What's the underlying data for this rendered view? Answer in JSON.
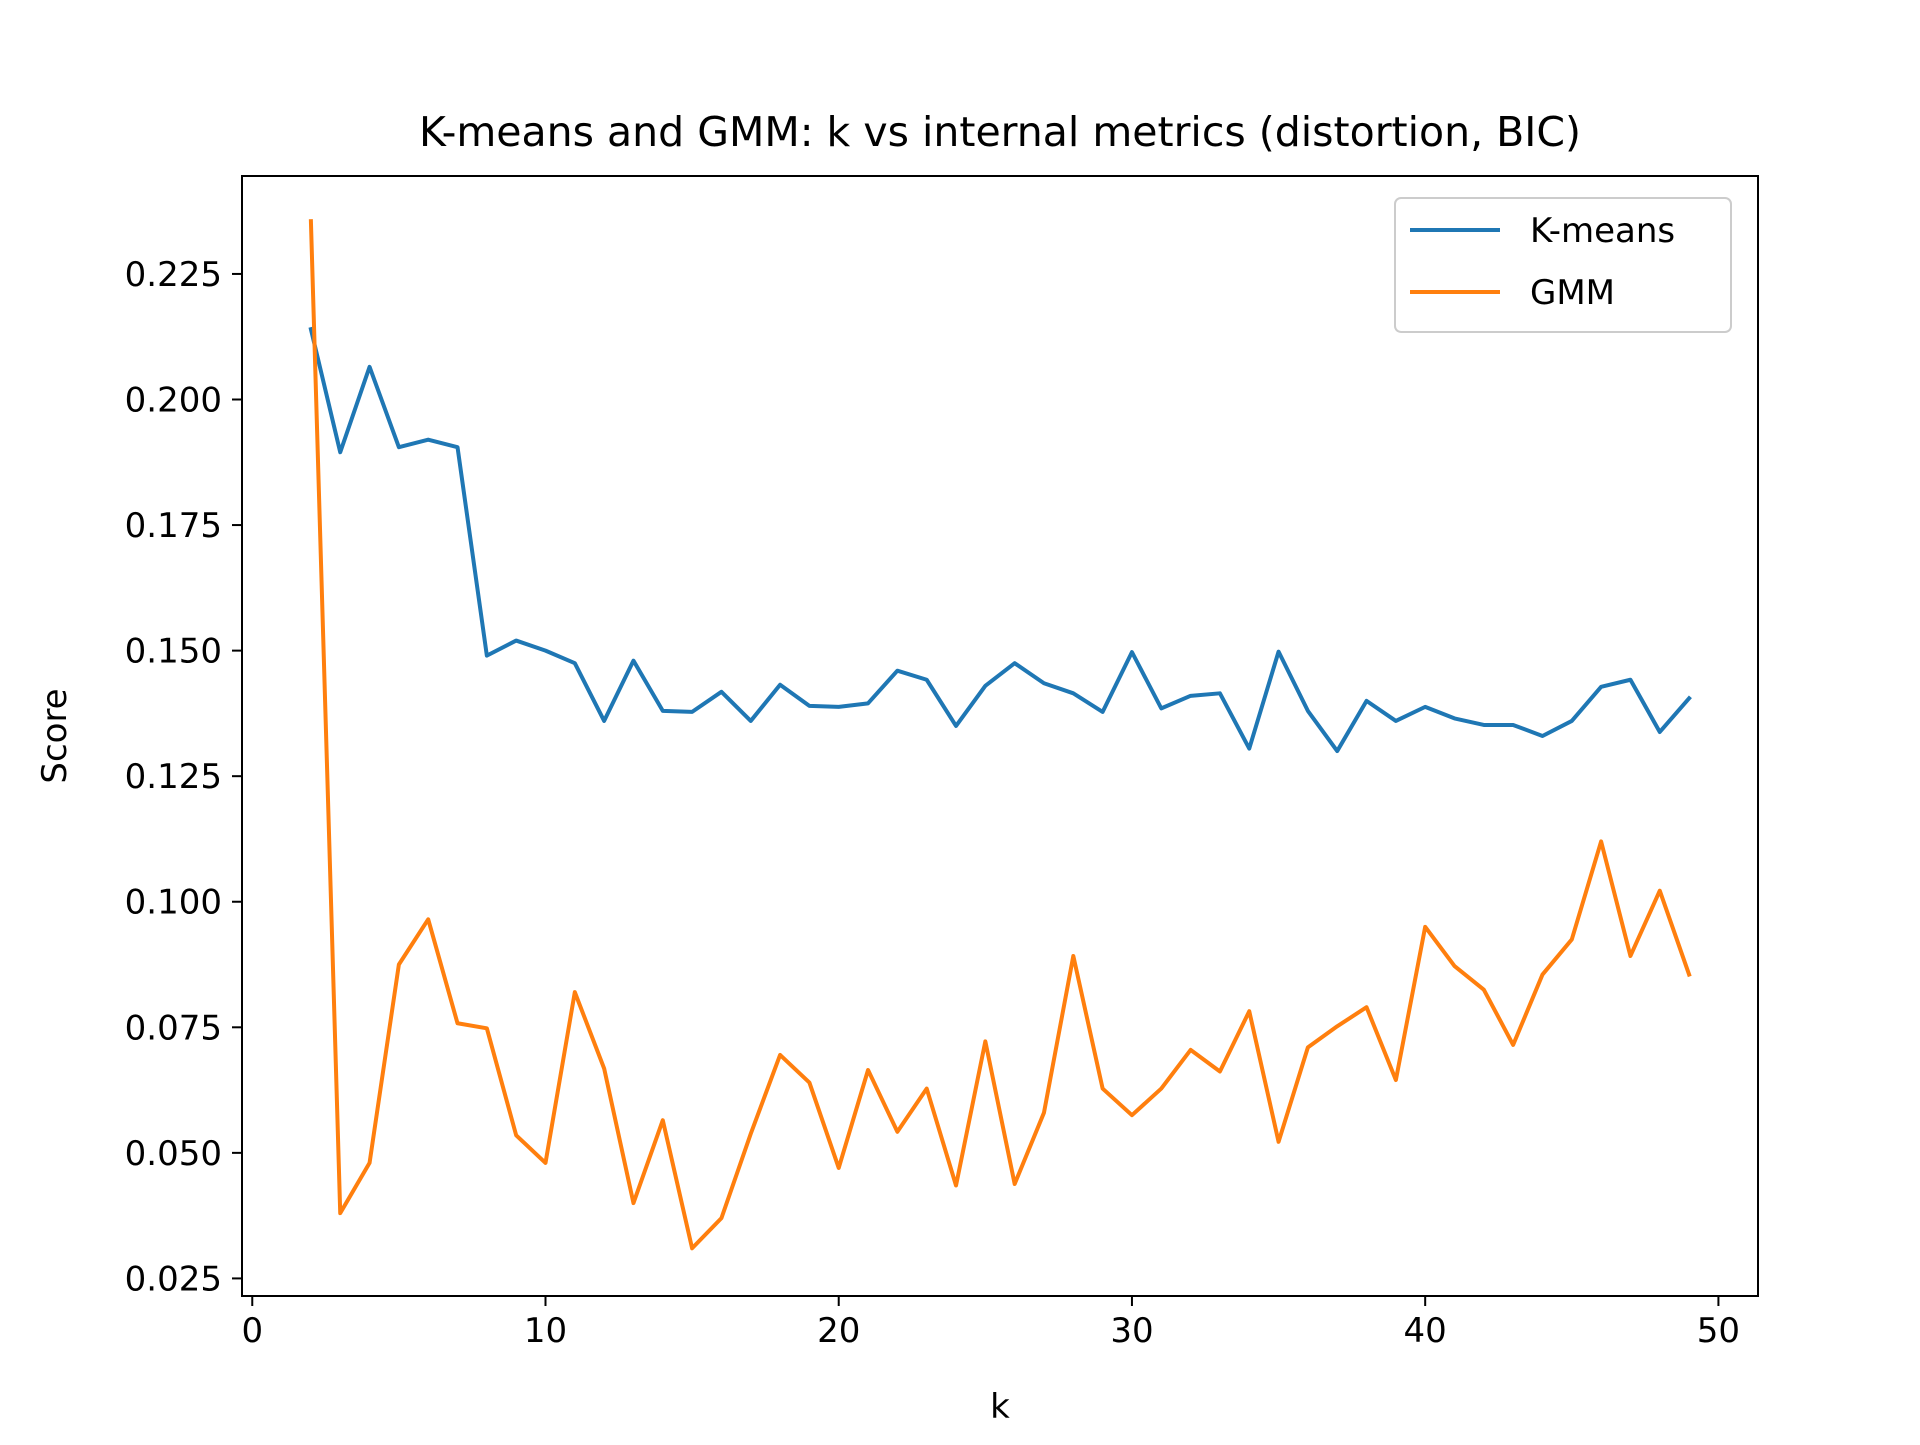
{
  "chart_data": {
    "type": "line",
    "title": "K-means and GMM: k vs internal metrics (distortion, BIC)",
    "xlabel": "k",
    "ylabel": "Score",
    "xlim": [
      -0.35,
      51.35
    ],
    "ylim": [
      0.0215,
      0.2445
    ],
    "xticks": [
      0,
      10,
      20,
      30,
      40,
      50
    ],
    "yticks": [
      0.025,
      0.05,
      0.075,
      0.1,
      0.125,
      0.15,
      0.175,
      0.2,
      0.225
    ],
    "xtick_labels": [
      "0",
      "10",
      "20",
      "30",
      "40",
      "50"
    ],
    "ytick_labels": [
      "0.025",
      "0.050",
      "0.075",
      "0.100",
      "0.125",
      "0.150",
      "0.175",
      "0.200",
      "0.225"
    ],
    "grid": false,
    "legend_position": "top-right",
    "x": [
      2,
      3,
      4,
      5,
      6,
      7,
      8,
      9,
      10,
      11,
      12,
      13,
      14,
      15,
      16,
      17,
      18,
      19,
      20,
      21,
      22,
      23,
      24,
      25,
      26,
      27,
      28,
      29,
      30,
      31,
      32,
      33,
      34,
      35,
      36,
      37,
      38,
      39,
      40,
      41,
      42,
      43,
      44,
      45,
      46,
      47,
      48,
      49
    ],
    "series": [
      {
        "name": "K-means",
        "color": "#1f77b4",
        "values": [
          0.214,
          0.1895,
          0.2065,
          0.1905,
          0.192,
          0.1905,
          0.149,
          0.152,
          0.15,
          0.1475,
          0.136,
          0.148,
          0.138,
          0.1378,
          0.1418,
          0.136,
          0.1432,
          0.139,
          0.1388,
          0.1395,
          0.146,
          0.1442,
          0.135,
          0.143,
          0.1475,
          0.1435,
          0.1415,
          0.1378,
          0.1497,
          0.1385,
          0.141,
          0.1415,
          0.1305,
          0.1498,
          0.138,
          0.13,
          0.14,
          0.136,
          0.1388,
          0.1365,
          0.1352,
          0.1352,
          0.133,
          0.136,
          0.1428,
          0.1442,
          0.1338,
          0.1405
        ]
      },
      {
        "name": "GMM",
        "color": "#ff7f0e",
        "values": [
          0.2355,
          0.038,
          0.048,
          0.0875,
          0.0965,
          0.0758,
          0.0748,
          0.0535,
          0.048,
          0.082,
          0.0668,
          0.04,
          0.0565,
          0.031,
          0.037,
          0.0538,
          0.0695,
          0.064,
          0.047,
          0.0665,
          0.0542,
          0.0628,
          0.0435,
          0.0722,
          0.0438,
          0.058,
          0.0892,
          0.0628,
          0.0575,
          0.0628,
          0.0705,
          0.0662,
          0.0782,
          0.0522,
          0.071,
          0.0752,
          0.079,
          0.0645,
          0.095,
          0.0872,
          0.0825,
          0.0715,
          0.0855,
          0.0925,
          0.112,
          0.0892,
          0.1022,
          0.0855
        ]
      }
    ]
  }
}
